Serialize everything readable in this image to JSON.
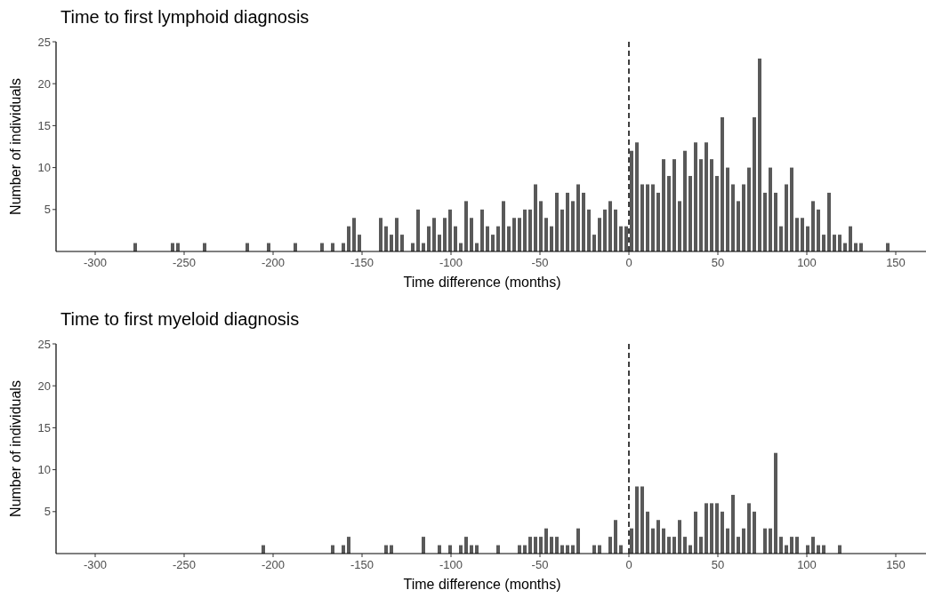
{
  "chart_data": [
    {
      "type": "histogram",
      "title": "Time to first lymphoid diagnosis",
      "xlabel": "Time difference (months)",
      "ylabel": "Number of individuals",
      "color": "#595959",
      "bins": [
        -279,
        -276,
        -273,
        -270,
        -267,
        -264,
        -261,
        -258,
        -255,
        -252,
        -249,
        -246,
        -243,
        -240,
        -237,
        -234,
        -231,
        -228,
        -225,
        -222,
        -219,
        -216,
        -213,
        -210,
        -207,
        -204,
        -201,
        -198,
        -195,
        -192,
        -189,
        -186,
        -183,
        -180,
        -177,
        -174,
        -171,
        -168,
        -165,
        -162,
        -159,
        -156,
        -153,
        -150,
        -147,
        -144,
        -141,
        -138,
        -135,
        -132,
        -129,
        -126,
        -123,
        -120,
        -117,
        -114,
        -111,
        -108,
        -105,
        -102,
        -99,
        -96,
        -93,
        -90,
        -87,
        -84,
        -81,
        -78,
        -75,
        -72,
        -69,
        -66,
        -63,
        -60,
        -57,
        -54,
        -51,
        -48,
        -45,
        -42,
        -39,
        -36,
        -33,
        -30,
        -27,
        -24,
        -21,
        -18,
        -15,
        -12,
        -9,
        -6,
        -3,
        0,
        3,
        6,
        9,
        12,
        15,
        18,
        21,
        24,
        27,
        30,
        33,
        36,
        39,
        42,
        45,
        48,
        51,
        54,
        57,
        60,
        63,
        66,
        69,
        72,
        75,
        78,
        81,
        84,
        87,
        90,
        93,
        96,
        99,
        102,
        105,
        108,
        111,
        114,
        117,
        120,
        123,
        126,
        129,
        132,
        135,
        138,
        141,
        144,
        147
      ],
      "values": [
        1,
        0,
        0,
        0,
        0,
        0,
        0,
        1,
        1,
        0,
        0,
        0,
        0,
        1,
        0,
        0,
        0,
        0,
        0,
        0,
        0,
        1,
        0,
        0,
        0,
        1,
        0,
        0,
        0,
        0,
        1,
        0,
        0,
        0,
        0,
        1,
        0,
        1,
        0,
        1,
        3,
        4,
        2,
        0,
        0,
        0,
        4,
        3,
        2,
        4,
        2,
        0,
        1,
        5,
        1,
        3,
        4,
        2,
        4,
        5,
        3,
        1,
        6,
        4,
        1,
        5,
        3,
        2,
        3,
        6,
        3,
        4,
        4,
        5,
        5,
        8,
        6,
        4,
        3,
        7,
        5,
        7,
        6,
        8,
        7,
        5,
        2,
        4,
        5,
        6,
        5,
        3,
        3,
        12,
        13,
        8,
        8,
        8,
        7,
        11,
        9,
        11,
        6,
        12,
        9,
        13,
        11,
        13,
        11,
        9,
        16,
        10,
        8,
        6,
        8,
        10,
        16,
        23,
        7,
        10,
        7,
        3,
        8,
        10,
        4,
        4,
        3,
        6,
        5,
        2,
        7,
        2,
        2,
        1,
        3,
        1,
        1,
        0,
        0,
        0,
        0,
        1
      ],
      "xlim": [
        -322,
        167
      ],
      "xticks": [
        -300,
        -250,
        -200,
        -150,
        -100,
        -50,
        0,
        50,
        100,
        150
      ],
      "ylim": [
        0,
        25
      ],
      "yticks": [
        5,
        10,
        15,
        20,
        25
      ],
      "ref_lines": [
        {
          "axis": "x",
          "value": 0,
          "line_style": "dashed",
          "color": "#000000"
        }
      ]
    },
    {
      "type": "histogram",
      "title": "Time to first myeloid diagnosis",
      "xlabel": "Time difference (months)",
      "ylabel": "Number of individuals",
      "color": "#595959",
      "bins": [
        -279,
        -276,
        -273,
        -270,
        -267,
        -264,
        -261,
        -258,
        -255,
        -252,
        -249,
        -246,
        -243,
        -240,
        -237,
        -234,
        -231,
        -228,
        -225,
        -222,
        -219,
        -216,
        -213,
        -210,
        -207,
        -204,
        -201,
        -198,
        -195,
        -192,
        -189,
        -186,
        -183,
        -180,
        -177,
        -174,
        -171,
        -168,
        -165,
        -162,
        -159,
        -156,
        -153,
        -150,
        -147,
        -144,
        -141,
        -138,
        -135,
        -132,
        -129,
        -126,
        -123,
        -120,
        -117,
        -114,
        -111,
        -108,
        -105,
        -102,
        -99,
        -96,
        -93,
        -90,
        -87,
        -84,
        -81,
        -78,
        -75,
        -72,
        -69,
        -66,
        -63,
        -60,
        -57,
        -54,
        -51,
        -48,
        -45,
        -42,
        -39,
        -36,
        -33,
        -30,
        -27,
        -24,
        -21,
        -18,
        -15,
        -12,
        -9,
        -6,
        -3,
        0,
        3,
        6,
        9,
        12,
        15,
        18,
        21,
        24,
        27,
        30,
        33,
        36,
        39,
        42,
        45,
        48,
        51,
        54,
        57,
        60,
        63,
        66,
        69,
        72,
        75,
        78,
        81,
        84,
        87,
        90,
        93,
        96,
        99,
        102,
        105,
        108,
        111,
        114,
        117,
        120,
        123,
        126,
        129,
        132,
        135,
        138,
        141,
        144,
        147
      ],
      "values": [
        0,
        0,
        0,
        0,
        0,
        0,
        0,
        0,
        0,
        0,
        0,
        0,
        0,
        0,
        0,
        0,
        0,
        0,
        0,
        0,
        0,
        0,
        0,
        0,
        1,
        0,
        0,
        0,
        0,
        0,
        0,
        0,
        0,
        0,
        0,
        0,
        0,
        1,
        0,
        1,
        2,
        0,
        0,
        0,
        0,
        0,
        0,
        1,
        1,
        0,
        0,
        0,
        0,
        0,
        2,
        0,
        0,
        1,
        0,
        1,
        0,
        1,
        2,
        1,
        1,
        0,
        0,
        0,
        1,
        0,
        0,
        0,
        1,
        1,
        2,
        2,
        2,
        3,
        2,
        2,
        1,
        1,
        1,
        3,
        0,
        0,
        1,
        1,
        0,
        2,
        4,
        1,
        0,
        3,
        8,
        8,
        5,
        3,
        4,
        3,
        2,
        2,
        4,
        2,
        1,
        5,
        2,
        6,
        6,
        6,
        5,
        3,
        7,
        2,
        3,
        6,
        5,
        0,
        3,
        3,
        12,
        2,
        1,
        2,
        2,
        0,
        1,
        2,
        1,
        1,
        0,
        0,
        1,
        0,
        0,
        0,
        0,
        0,
        0,
        0,
        0,
        0
      ],
      "xlim": [
        -322,
        167
      ],
      "xticks": [
        -300,
        -250,
        -200,
        -150,
        -100,
        -50,
        0,
        50,
        100,
        150
      ],
      "ylim": [
        0,
        25
      ],
      "yticks": [
        5,
        10,
        15,
        20,
        25
      ],
      "ref_lines": [
        {
          "axis": "x",
          "value": 0,
          "line_style": "dashed",
          "color": "#000000"
        }
      ]
    }
  ]
}
